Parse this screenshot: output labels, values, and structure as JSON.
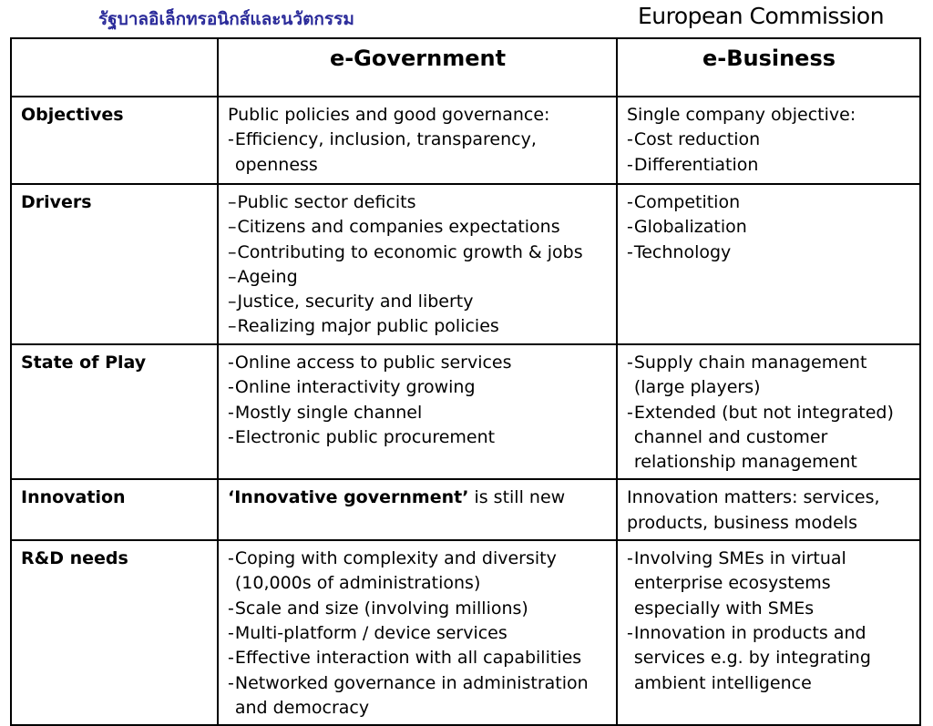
{
  "header": {
    "thai_title": "รัฐบาลอิเล็กทรอนิกส์และนวัตกรรม",
    "organization": "European Commission"
  },
  "table": {
    "columns": [
      "",
      "e-Government",
      "e-Business"
    ],
    "rows": [
      {
        "label": "Objectives",
        "egov": {
          "intro": "Public policies and good governance:",
          "marker": "-",
          "items": [
            "Efficiency, inclusion, transparency, openness"
          ]
        },
        "ebiz": {
          "intro": "Single company objective:",
          "marker": "-",
          "items": [
            "Cost reduction",
            "Differentiation"
          ]
        }
      },
      {
        "label": "Drivers",
        "egov": {
          "marker": "–",
          "items": [
            "Public sector deficits",
            "Citizens and companies expectations",
            "Contributing to economic growth & jobs",
            "Ageing",
            "Justice, security and liberty",
            "Realizing major public policies"
          ]
        },
        "ebiz": {
          "marker": "-",
          "items": [
            "Competition",
            "Globalization",
            "Technology"
          ]
        }
      },
      {
        "label": "State of Play",
        "egov": {
          "marker": "-",
          "items": [
            "Online access to public services",
            "Online interactivity growing",
            "Mostly single channel",
            "Electronic public procurement"
          ]
        },
        "ebiz": {
          "marker": "-",
          "items": [
            "Supply chain management (large players)",
            "Extended (but not integrated) channel and customer relationship management"
          ]
        }
      },
      {
        "label": "Innovation",
        "egov": {
          "emphasis": "‘Innovative government’",
          "rest": " is still new"
        },
        "ebiz": {
          "text": "Innovation matters: services, products, business models"
        }
      },
      {
        "label": "R&D needs",
        "egov": {
          "marker": "-",
          "items": [
            "Coping with complexity and diversity (10,000s of administrations)",
            "Scale and size (involving millions)",
            "Multi-platform / device services",
            "Effective interaction with all capabilities",
            "Networked governance in administration and democracy"
          ]
        },
        "ebiz": {
          "marker": "-",
          "items": [
            "Involving SMEs in virtual enterprise ecosystems especially with SMEs",
            "Innovation in products and services e.g. by integrating ambient intelligence"
          ]
        }
      }
    ]
  }
}
